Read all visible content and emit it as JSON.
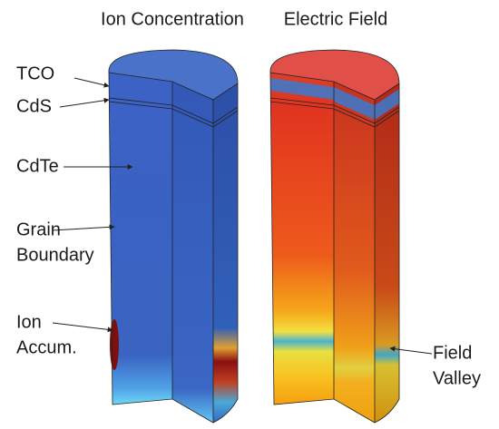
{
  "panels": [
    {
      "title": "Ion Concentration"
    },
    {
      "title": "Electric Field"
    }
  ],
  "labels": [
    {
      "lines": [
        "TCO"
      ]
    },
    {
      "lines": [
        "CdS"
      ]
    },
    {
      "lines": [
        "CdTe"
      ]
    },
    {
      "lines": [
        "Grain",
        "Boundary"
      ]
    },
    {
      "lines": [
        "Ion",
        "Accum."
      ]
    },
    {
      "lines": [
        "Field",
        "Valley"
      ]
    }
  ]
}
